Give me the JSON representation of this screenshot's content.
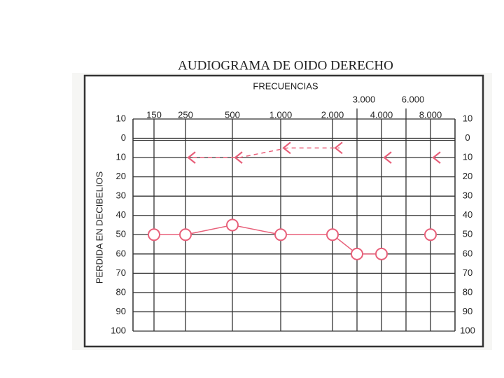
{
  "chart_data": {
    "type": "line",
    "title": "AUDIOGRAMA DE OIDO DERECHO",
    "x_label": "FRECUENCIAS",
    "y_label": "PERDIDA EN DECIBELIOS",
    "categories": [
      "150",
      "250",
      "500",
      "1.000",
      "2.000",
      "3.000",
      "4.000",
      "6.000",
      "8.000"
    ],
    "series": [
      {
        "color": "#e8607a",
        "marker": "circle",
        "dashed": false,
        "values": [
          50,
          50,
          45,
          50,
          50,
          60,
          60,
          null,
          50
        ]
      },
      {
        "color": "#e8607a",
        "marker": "arrow",
        "dashed": true,
        "values": [
          null,
          10,
          10,
          5,
          5,
          null,
          10,
          null,
          10
        ]
      }
    ],
    "ylim": [
      -10,
      100
    ],
    "inverted": true,
    "yticks": [
      {
        "value": -10,
        "label": "10"
      },
      0,
      10,
      20,
      30,
      40,
      50,
      60,
      70,
      80,
      90,
      100
    ],
    "grid": true
  }
}
